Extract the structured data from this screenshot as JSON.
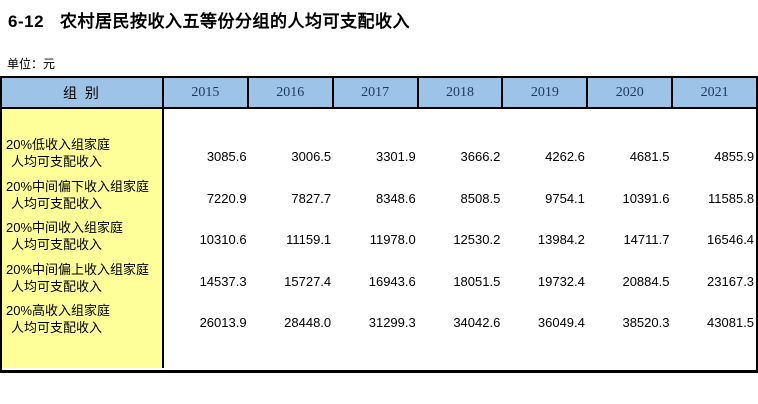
{
  "header": {
    "table_number": "6-12",
    "title": "农村居民按收入五等份分组的人均可支配收入",
    "unit_label": "单位：元"
  },
  "table": {
    "group_header": "组  别",
    "years": [
      "2015",
      "2016",
      "2017",
      "2018",
      "2019",
      "2020",
      "2021"
    ],
    "rows": [
      {
        "label_line1": "20%低收入组家庭",
        "label_line2": "人均可支配收入",
        "values": [
          "3085.6",
          "3006.5",
          "3301.9",
          "3666.2",
          "4262.6",
          "4681.5",
          "4855.9"
        ]
      },
      {
        "label_line1": "20%中间偏下收入组家庭",
        "label_line2": "人均可支配收入",
        "values": [
          "7220.9",
          "7827.7",
          "8348.6",
          "8508.5",
          "9754.1",
          "10391.6",
          "11585.8"
        ]
      },
      {
        "label_line1": "20%中间收入组家庭",
        "label_line2": "人均可支配收入",
        "values": [
          "10310.6",
          "11159.1",
          "11978.0",
          "12530.2",
          "13984.2",
          "14711.7",
          "16546.4"
        ]
      },
      {
        "label_line1": "20%中间偏上收入组家庭",
        "label_line2": "人均可支配收入",
        "values": [
          "14537.3",
          "15727.4",
          "16943.6",
          "18051.5",
          "19732.4",
          "20884.5",
          "23167.3"
        ]
      },
      {
        "label_line1": "20%高收入组家庭",
        "label_line2": "人均可支配收入",
        "values": [
          "26013.9",
          "28448.0",
          "31299.3",
          "34042.6",
          "36049.4",
          "38520.3",
          "43081.5"
        ]
      }
    ]
  },
  "colors": {
    "header_bg": "#9DC3E6",
    "label_column_bg": "#FFFF99",
    "year_text": "#1F3864",
    "border": "#000000",
    "background": "#FFFFFF"
  },
  "chart_data": {
    "type": "table",
    "title": "6-12 农村居民按收入五等份分组的人均可支配收入",
    "unit": "元",
    "columns": [
      "2015",
      "2016",
      "2017",
      "2018",
      "2019",
      "2020",
      "2021"
    ],
    "rows": [
      {
        "group": "20%低收入组家庭人均可支配收入",
        "values": [
          3085.6,
          3006.5,
          3301.9,
          3666.2,
          4262.6,
          4681.5,
          4855.9
        ]
      },
      {
        "group": "20%中间偏下收入组家庭人均可支配收入",
        "values": [
          7220.9,
          7827.7,
          8348.6,
          8508.5,
          9754.1,
          10391.6,
          11585.8
        ]
      },
      {
        "group": "20%中间收入组家庭人均可支配收入",
        "values": [
          10310.6,
          11159.1,
          11978.0,
          12530.2,
          13984.2,
          14711.7,
          16546.4
        ]
      },
      {
        "group": "20%中间偏上收入组家庭人均可支配收入",
        "values": [
          14537.3,
          15727.4,
          16943.6,
          18051.5,
          19732.4,
          20884.5,
          23167.3
        ]
      },
      {
        "group": "20%高收入组家庭人均可支配收入",
        "values": [
          26013.9,
          28448.0,
          31299.3,
          34042.6,
          36049.4,
          38520.3,
          43081.5
        ]
      }
    ]
  }
}
